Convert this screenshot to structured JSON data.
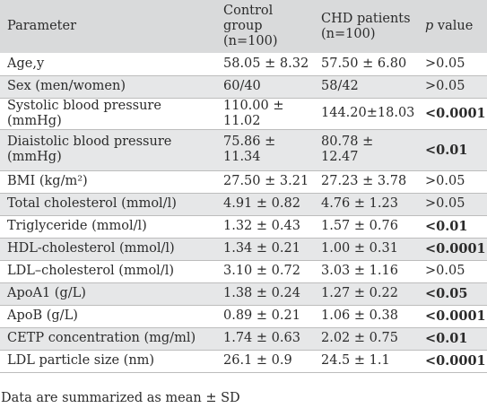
{
  "header": {
    "parameter": "Parameter",
    "control_group": "Control group",
    "control_n": "(n=100)",
    "chd_patients": "CHD patients",
    "chd_n": "(n=100)",
    "p_italic": "p",
    "p_rest": " value"
  },
  "rows": [
    {
      "parameter": "Age,y",
      "control": "58.05 ± 8.32",
      "chd": "57.50 ± 6.80",
      "p": ">0.05",
      "p_bold": false
    },
    {
      "parameter": "Sex (men/women)",
      "control": "60/40",
      "chd": "58/42",
      "p": ">0.05",
      "p_bold": false
    },
    {
      "parameter": "Systolic blood pressure (mmHg)",
      "control": "110.00 ± 11.02",
      "chd": "144.20±18.03",
      "p": "<0.0001",
      "p_bold": true
    },
    {
      "parameter": "Diaistolic blood pressure (mmHg)",
      "control": "75.86 ± 11.34",
      "chd": "80.78 ± 12.47",
      "p": "<0.01",
      "p_bold": true
    },
    {
      "parameter": "BMI (kg/m²)",
      "control": "27.50 ± 3.21",
      "chd": "27.23 ± 3.78",
      "p": ">0.05",
      "p_bold": false
    },
    {
      "parameter": "Total cholesterol (mmol/l)",
      "control": "4.91 ± 0.82",
      "chd": "4.76 ± 1.23",
      "p": ">0.05",
      "p_bold": false
    },
    {
      "parameter": "Triglyceride (mmol/l)",
      "control": "1.32 ± 0.43",
      "chd": "1.57 ± 0.76",
      "p": "<0.01",
      "p_bold": true
    },
    {
      "parameter": "HDL-cholesterol (mmol/l)",
      "control": "1.34 ± 0.21",
      "chd": "1.00 ± 0.31",
      "p": "<0.0001",
      "p_bold": true
    },
    {
      "parameter": "LDL–cholesterol (mmol/l)",
      "control": "3.10 ± 0.72",
      "chd": "3.03 ± 1.16",
      "p": ">0.05",
      "p_bold": false
    },
    {
      "parameter": "ApoA1 (g/L)",
      "control": "1.38 ± 0.24",
      "chd": "1.27 ± 0.22",
      "p": "<0.05",
      "p_bold": true
    },
    {
      "parameter": "ApoB (g/L)",
      "control": "0.89 ± 0.21",
      "chd": "1.06 ± 0.38",
      "p": "<0.0001",
      "p_bold": true
    },
    {
      "parameter": "CETP concentration (mg/ml)",
      "control": "1.74 ± 0.63",
      "chd": "2.02 ± 0.75",
      "p": "<0.01",
      "p_bold": true
    },
    {
      "parameter": "LDL particle size (nm)",
      "control": "26.1 ± 0.9",
      "chd": "24.5 ± 1.1",
      "p": "<0.0001",
      "p_bold": true
    }
  ],
  "footnote": "Data are summarized as mean ± SD",
  "colors": {
    "header_bg": "#d9dadb",
    "shade_bg": "#e6e7e8",
    "rule": "#bdbdbd",
    "text": "#2b2b2b"
  }
}
